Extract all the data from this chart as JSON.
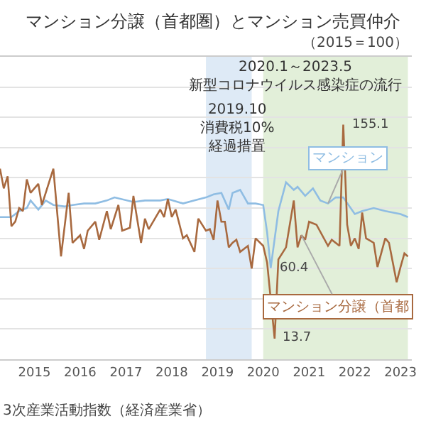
{
  "chart_data": {
    "type": "line",
    "title": "マンション分譲（首都圏）とマンション売買仲介",
    "subtitle": "（2015＝100）",
    "xlim": [
      "2014-04",
      "2023-04"
    ],
    "xticks": [
      "2015",
      "2016",
      "2017",
      "2018",
      "2019",
      "2020",
      "2021",
      "2022",
      "2023"
    ],
    "ylim": [
      0,
      200
    ],
    "yticks": [
      {
        "value": 0,
        "label": null
      },
      {
        "value": 20,
        "label": null
      },
      {
        "value": 40,
        "label": null
      },
      {
        "value": 60,
        "label": null
      },
      {
        "value": 80,
        "label": null
      },
      {
        "value": 100,
        "label": null
      },
      {
        "value": 120,
        "label": null
      },
      {
        "value": 140,
        "label": null
      },
      {
        "value": 160,
        "label": null
      },
      {
        "value": 180,
        "label": null
      },
      {
        "value": 200,
        "label": null
      }
    ],
    "tick_labels": "x",
    "grid": "y",
    "legend": false,
    "series": [
      {
        "name": "マンション",
        "color": "#8fbde3",
        "x": [
          "2014-04",
          "2014-07",
          "2014-09",
          "2014-11",
          "2014-12",
          "2015-02",
          "2015-04",
          "2015-06",
          "2015-09",
          "2015-11",
          "2016-02",
          "2016-05",
          "2016-08",
          "2016-10",
          "2017-03",
          "2017-06",
          "2017-10",
          "2017-12",
          "2018-04",
          "2018-07",
          "2018-10",
          "2018-12",
          "2019-02",
          "2019-04",
          "2019-05",
          "2019-07",
          "2019-09",
          "2019-11",
          "2020-01",
          "2020-02",
          "2020-03",
          "2020-05",
          "2020-07",
          "2020-09",
          "2020-10",
          "2020-12",
          "2021-02",
          "2021-04",
          "2021-06",
          "2021-08",
          "2021-10",
          "2022-01",
          "2022-03",
          "2022-06",
          "2022-09",
          "2023-01",
          "2023-03"
        ],
        "values": [
          94,
          94,
          98,
          100,
          105,
          99,
          105,
          102,
          101,
          102,
          103,
          103,
          105,
          107,
          104,
          105,
          105,
          106,
          103,
          105,
          107,
          109,
          110,
          99,
          110,
          112,
          103,
          103,
          102,
          84,
          60.4,
          98,
          117,
          112,
          114,
          108,
          113,
          105,
          103,
          107,
          107,
          96,
          98,
          100,
          98,
          96,
          94
        ],
        "value_labels": [
          null,
          null,
          null,
          null,
          null,
          null,
          null,
          null,
          null,
          null,
          null,
          null,
          null,
          null,
          null,
          null,
          null,
          null,
          null,
          null,
          null,
          null,
          null,
          null,
          null,
          null,
          null,
          null,
          null,
          null,
          "60.4",
          null,
          null,
          null,
          null,
          null,
          null,
          null,
          null,
          null,
          null,
          null,
          null,
          null,
          null,
          null,
          null
        ]
      },
      {
        "name": "マンション分譲（首都",
        "color": "#a8693f",
        "x": [
          "2014-04",
          "2014-05",
          "2014-06",
          "2014-07",
          "2014-08",
          "2014-09",
          "2014-10",
          "2014-11",
          "2014-12",
          "2015-02",
          "2015-03",
          "2015-04",
          "2015-06",
          "2015-08",
          "2015-10",
          "2015-11",
          "2016-01",
          "2016-02",
          "2016-03",
          "2016-05",
          "2016-06",
          "2016-08",
          "2016-09",
          "2016-11",
          "2016-12",
          "2017-02",
          "2017-03",
          "2017-05",
          "2017-06",
          "2017-07",
          "2017-10",
          "2017-11",
          "2017-12",
          "2018-01",
          "2018-02",
          "2018-04",
          "2018-05",
          "2018-07",
          "2018-08",
          "2018-10",
          "2018-11",
          "2018-12",
          "2019-01",
          "2019-02",
          "2019-03",
          "2019-04",
          "2019-05",
          "2019-06",
          "2019-07",
          "2019-09",
          "2019-10",
          "2019-11",
          "2020-01",
          "2020-02",
          "2020-04",
          "2020-05",
          "2020-07",
          "2020-09",
          "2020-10",
          "2020-11",
          "2020-12",
          "2021-01",
          "2021-03",
          "2021-06",
          "2021-07",
          "2021-09",
          "2021-10",
          "2021-11",
          "2021-12",
          "2022-01",
          "2022-02",
          "2022-03",
          "2022-04",
          "2022-06",
          "2022-07",
          "2022-09",
          "2022-10",
          "2022-12",
          "2023-01",
          "2023-02",
          "2023-03"
        ],
        "values": [
          126,
          113,
          121,
          88,
          91,
          100,
          98,
          119,
          110,
          116,
          102,
          110,
          126,
          68,
          110,
          77,
          82,
          73,
          85,
          91,
          79,
          98,
          86,
          102,
          85,
          87,
          108,
          77,
          93,
          86,
          99,
          94,
          106,
          94,
          99,
          80,
          82,
          71,
          93,
          85,
          86,
          79,
          105,
          91,
          91,
          74,
          77,
          79,
          71,
          75,
          60,
          80,
          75,
          64,
          13.7,
          66,
          74,
          105,
          74,
          82,
          79,
          91,
          89,
          75,
          79,
          75,
          155.1,
          89,
          75,
          80,
          73,
          97,
          80,
          77,
          61,
          80,
          77,
          51,
          61,
          70,
          68
        ],
        "value_labels": [
          null,
          null,
          null,
          null,
          null,
          null,
          null,
          null,
          null,
          null,
          null,
          null,
          null,
          null,
          null,
          null,
          null,
          null,
          null,
          null,
          null,
          null,
          null,
          null,
          null,
          null,
          null,
          null,
          null,
          null,
          null,
          null,
          null,
          null,
          null,
          null,
          null,
          null,
          null,
          null,
          null,
          null,
          null,
          null,
          null,
          null,
          null,
          null,
          null,
          null,
          null,
          null,
          null,
          null,
          "13.7",
          null,
          null,
          null,
          null,
          null,
          null,
          null,
          null,
          null,
          null,
          null,
          "155.1",
          null,
          null,
          null,
          null,
          null,
          null,
          null,
          null,
          null,
          null,
          null,
          null,
          null,
          null
        ]
      }
    ],
    "bands": [
      {
        "axis": "x",
        "from": "2018-10",
        "to": "2019-10",
        "label": "2019.10\n消費税10%\n経過措置",
        "color": "#deeaf6"
      },
      {
        "axis": "x",
        "from": "2020-01",
        "to": "2023-03",
        "label": "2020.1～2023.5\n新型コロナウイルス感染症の流行",
        "color": "#e2efd9"
      }
    ],
    "annotations": [
      "3次産業活動指数（経済産業省）"
    ]
  }
}
